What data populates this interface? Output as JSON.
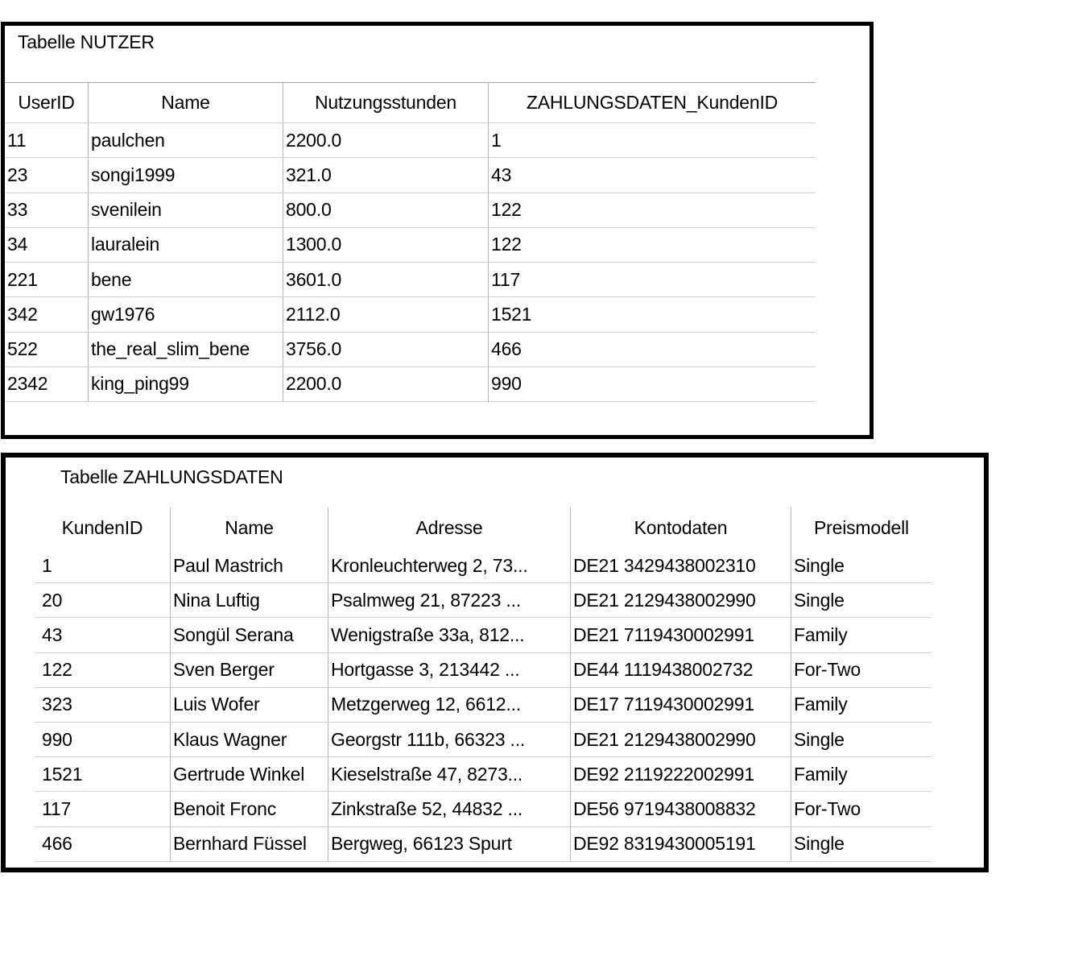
{
  "colors": {
    "frame": "#000000",
    "grid_line_vertical": "#b5b5b5",
    "grid_line_horizontal": "#cfcfcf",
    "background": "#ffffff",
    "text": "#000000"
  },
  "nutzer": {
    "title": "Tabelle NUTZER",
    "columns": [
      "UserID",
      "Name",
      "Nutzungsstunden",
      "ZAHLUNGSDATEN_KundenID"
    ],
    "rows": [
      [
        "11",
        "paulchen",
        "2200.0",
        "1"
      ],
      [
        "23",
        "songi1999",
        "321.0",
        "43"
      ],
      [
        "33",
        "svenilein",
        "800.0",
        "122"
      ],
      [
        "34",
        "lauralein",
        "1300.0",
        "122"
      ],
      [
        "221",
        "bene",
        "3601.0",
        "117"
      ],
      [
        "342",
        "gw1976",
        "2112.0",
        "1521"
      ],
      [
        "522",
        "the_real_slim_bene",
        "3756.0",
        "466"
      ],
      [
        "2342",
        "king_ping99",
        "2200.0",
        "990"
      ]
    ]
  },
  "zahlungsdaten": {
    "title": "Tabelle ZAHLUNGSDATEN",
    "columns": [
      "KundenID",
      "Name",
      "Adresse",
      "Kontodaten",
      "Preismodell"
    ],
    "rows": [
      [
        "1",
        "Paul Mastrich",
        "Kronleuchterweg 2, 73...",
        "DE21 3429438002310",
        "Single"
      ],
      [
        "20",
        "Nina Luftig",
        "Psalmweg 21, 87223 ...",
        "DE21 2129438002990",
        "Single"
      ],
      [
        "43",
        "Songül Serana",
        "Wenigstraße 33a, 812...",
        "DE21 7119430002991",
        "Family"
      ],
      [
        "122",
        "Sven Berger",
        "Hortgasse 3, 213442 ...",
        "DE44 1119438002732",
        "For-Two"
      ],
      [
        "323",
        "Luis Wofer",
        "Metzgerweg 12, 6612...",
        "DE17 7119430002991",
        "Family"
      ],
      [
        "990",
        "Klaus Wagner",
        "Georgstr 111b, 66323 ...",
        "DE21 2129438002990",
        "Single"
      ],
      [
        "1521",
        "Gertrude Winkel",
        "Kieselstraße 47, 8273...",
        "DE92 2119222002991",
        "Family"
      ],
      [
        "117",
        "Benoit Fronc",
        "Zinkstraße 52, 44832 ...",
        "DE56 9719438008832",
        "For-Two"
      ],
      [
        "466",
        "Bernhard Füssel",
        "Bergweg, 66123 Spurt",
        "DE92 8319430005191",
        "Single"
      ]
    ]
  }
}
